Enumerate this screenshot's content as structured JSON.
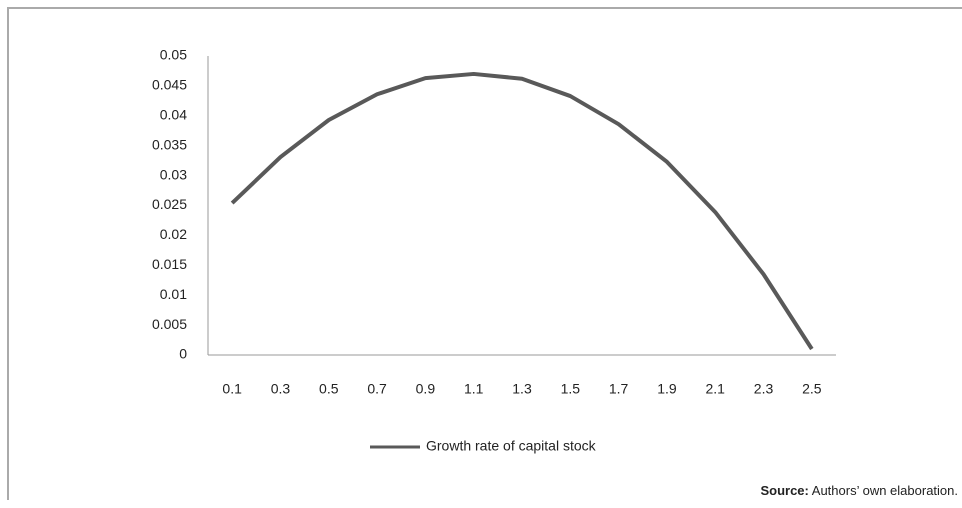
{
  "chart_data": {
    "type": "line",
    "categories": [
      "0.1",
      "0.3",
      "0.5",
      "0.7",
      "0.9",
      "1.1",
      "1.3",
      "1.5",
      "1.7",
      "1.9",
      "2.1",
      "2.3",
      "2.5"
    ],
    "series": [
      {
        "name": "Growth rate of capital stock",
        "color": "#595959",
        "values": [
          0.0254,
          0.0331,
          0.0393,
          0.0436,
          0.0463,
          0.047,
          0.0462,
          0.0433,
          0.0386,
          0.0323,
          0.0239,
          0.0135,
          0.001
        ]
      }
    ],
    "ylim": [
      0,
      0.05
    ],
    "yticks": [
      0,
      0.005,
      0.01,
      0.015,
      0.02,
      0.025,
      0.03,
      0.035,
      0.04,
      0.045,
      0.05
    ],
    "grid": false,
    "legend": "bottom",
    "source_label": "Source:",
    "source_text": "Authors’ own elaboration."
  }
}
